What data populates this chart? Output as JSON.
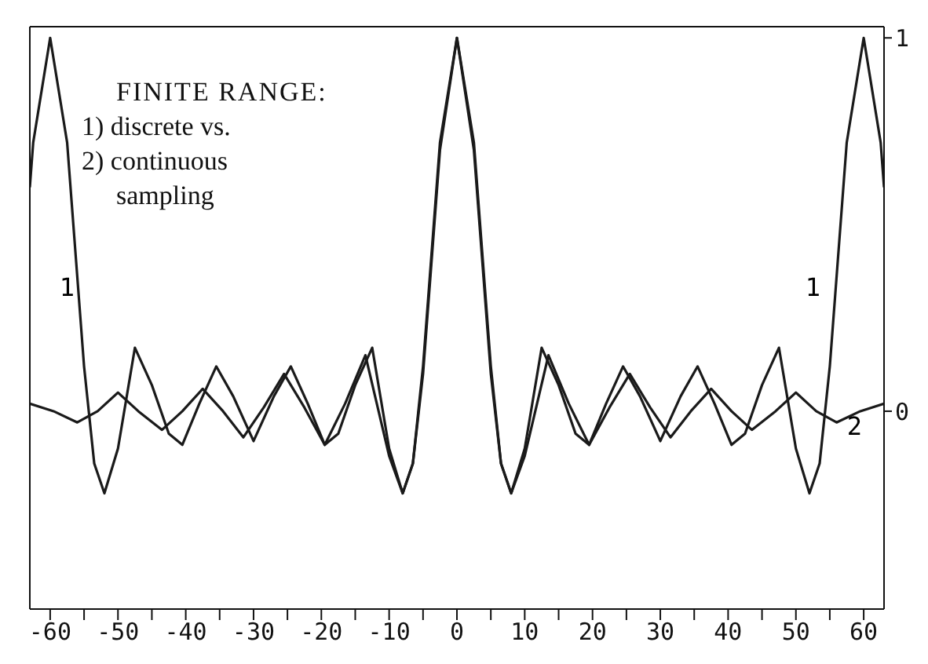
{
  "chart_data": {
    "type": "line",
    "title": "FINITE RANGE:",
    "annotations": [
      "1) discrete vs.",
      "2) continuous sampling"
    ],
    "xlim": [
      -63,
      63
    ],
    "xticks": [
      {
        "value": -60,
        "label": "-60"
      },
      {
        "value": -55,
        "label": null
      },
      {
        "value": -50,
        "label": "-50"
      },
      {
        "value": -45,
        "label": null
      },
      {
        "value": -40,
        "label": "-40"
      },
      {
        "value": -35,
        "label": null
      },
      {
        "value": -30,
        "label": "-30"
      },
      {
        "value": -25,
        "label": null
      },
      {
        "value": -20,
        "label": "-20"
      },
      {
        "value": -15,
        "label": null
      },
      {
        "value": -10,
        "label": "-10"
      },
      {
        "value": -5,
        "label": null
      },
      {
        "value": 0,
        "label": "0"
      },
      {
        "value": 5,
        "label": null
      },
      {
        "value": 10,
        "label": "10"
      },
      {
        "value": 15,
        "label": null
      },
      {
        "value": 20,
        "label": "20"
      },
      {
        "value": 25,
        "label": null
      },
      {
        "value": 30,
        "label": "30"
      },
      {
        "value": 35,
        "label": null
      },
      {
        "value": 40,
        "label": "40"
      },
      {
        "value": 45,
        "label": null
      },
      {
        "value": 50,
        "label": "50"
      },
      {
        "value": 55,
        "label": null
      },
      {
        "value": 60,
        "label": "60"
      }
    ],
    "ylim": [
      -0.53,
      1.03
    ],
    "yticks": [
      0,
      1
    ],
    "marker": "none",
    "line_style": "solid",
    "series": [
      {
        "name": "1",
        "color": "#1a1a1a",
        "x": [
          -63,
          -62.5,
          -60,
          -57.5,
          -55,
          -53.5,
          -52,
          -50,
          -47.5,
          -45,
          -42.5,
          -40.5,
          -38,
          -35.5,
          -33,
          -30,
          -27,
          -24.5,
          -22,
          -19.5,
          -17.5,
          -15,
          -12.5,
          -10,
          -8,
          -6.5,
          -5,
          -2.5,
          0,
          2.5,
          5,
          6.5,
          8,
          10,
          12.5,
          15,
          17.5,
          19.5,
          22,
          24.5,
          27,
          30,
          33,
          35.5,
          38,
          40.5,
          42.5,
          45,
          47.5,
          50,
          52,
          53.5,
          55,
          57.5,
          60,
          62.5,
          63
        ],
        "values": [
          0.6,
          0.72,
          1,
          0.72,
          0.12,
          -0.14,
          -0.22,
          -0.1,
          0.17,
          0.07,
          -0.06,
          -0.09,
          0.02,
          0.12,
          0.04,
          -0.08,
          0.04,
          0.12,
          0.02,
          -0.09,
          -0.06,
          0.07,
          0.17,
          -0.1,
          -0.22,
          -0.14,
          0.12,
          0.72,
          1,
          0.72,
          0.12,
          -0.14,
          -0.22,
          -0.1,
          0.17,
          0.07,
          -0.06,
          -0.09,
          0.02,
          0.12,
          0.04,
          -0.08,
          0.04,
          0.12,
          0.02,
          -0.09,
          -0.06,
          0.07,
          0.17,
          -0.1,
          -0.22,
          -0.14,
          0.12,
          0.72,
          1,
          0.72,
          0.6
        ]
      },
      {
        "name": "2",
        "color": "#1a1a1a",
        "x": [
          -63,
          -59.5,
          -56,
          -53,
          -50,
          -47,
          -43.5,
          -40.5,
          -37.5,
          -34.5,
          -31.5,
          -28.5,
          -25.5,
          -22.5,
          -19.5,
          -16.5,
          -13.5,
          -10,
          -8,
          -6.5,
          -5,
          -2.5,
          0,
          2.5,
          5,
          6.5,
          8,
          10,
          13.5,
          16.5,
          19.5,
          22.5,
          25.5,
          28.5,
          31.5,
          34.5,
          37.5,
          40.5,
          43.5,
          47,
          50,
          53,
          56,
          59.5,
          63
        ],
        "values": [
          0.02,
          0,
          -0.03,
          0,
          0.05,
          0,
          -0.05,
          0,
          0.06,
          0,
          -0.07,
          0.01,
          0.1,
          0.01,
          -0.09,
          0.02,
          0.15,
          -0.12,
          -0.22,
          -0.14,
          0.1,
          0.7,
          1,
          0.7,
          0.1,
          -0.14,
          -0.22,
          -0.12,
          0.15,
          0.02,
          -0.09,
          0.01,
          0.1,
          0.01,
          -0.07,
          0,
          0.06,
          0,
          -0.05,
          0,
          0.05,
          0,
          -0.03,
          0,
          0.02
        ]
      }
    ]
  }
}
